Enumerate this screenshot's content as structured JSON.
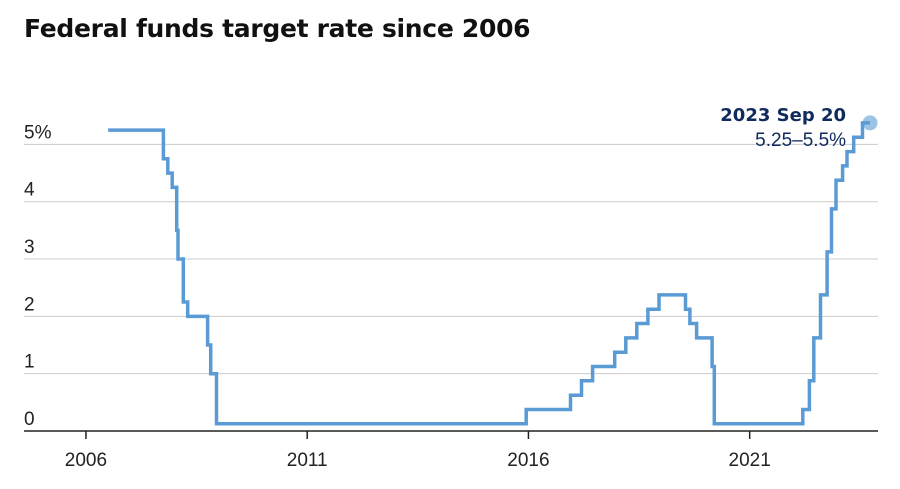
{
  "chart_data": {
    "type": "line",
    "title": "Federal funds target rate since 2006",
    "xlabel": "",
    "ylabel": "",
    "xlim": [
      2004.6,
      2023.9
    ],
    "ylim": [
      0,
      5.6
    ],
    "x_ticks": [
      {
        "value": 2006,
        "label": "2006"
      },
      {
        "value": 2011,
        "label": "2011"
      },
      {
        "value": 2016,
        "label": "2016"
      },
      {
        "value": 2021,
        "label": "2021"
      }
    ],
    "y_ticks": [
      {
        "value": 0,
        "label": "0"
      },
      {
        "value": 1,
        "label": "1"
      },
      {
        "value": 2,
        "label": "2"
      },
      {
        "value": 3,
        "label": "3"
      },
      {
        "value": 4,
        "label": "4"
      },
      {
        "value": 5,
        "label": "5%"
      }
    ],
    "grid": true,
    "line_color": "#5b9bd5",
    "series": [
      {
        "step": true,
        "points": [
          [
            2006.5,
            5.25
          ],
          [
            2007.7,
            5.25
          ],
          [
            2007.75,
            4.75
          ],
          [
            2007.85,
            4.5
          ],
          [
            2007.95,
            4.25
          ],
          [
            2008.05,
            3.5
          ],
          [
            2008.08,
            3.0
          ],
          [
            2008.2,
            2.25
          ],
          [
            2008.3,
            2.0
          ],
          [
            2008.75,
            1.5
          ],
          [
            2008.82,
            1.0
          ],
          [
            2008.95,
            0.125
          ],
          [
            2015.95,
            0.375
          ],
          [
            2016.95,
            0.625
          ],
          [
            2017.2,
            0.875
          ],
          [
            2017.45,
            1.125
          ],
          [
            2017.95,
            1.375
          ],
          [
            2018.2,
            1.625
          ],
          [
            2018.45,
            1.875
          ],
          [
            2018.7,
            2.125
          ],
          [
            2018.95,
            2.375
          ],
          [
            2019.55,
            2.125
          ],
          [
            2019.65,
            1.875
          ],
          [
            2019.8,
            1.625
          ],
          [
            2020.15,
            1.125
          ],
          [
            2020.2,
            0.125
          ],
          [
            2022.2,
            0.375
          ],
          [
            2022.35,
            0.875
          ],
          [
            2022.45,
            1.625
          ],
          [
            2022.6,
            2.375
          ],
          [
            2022.75,
            3.125
          ],
          [
            2022.85,
            3.875
          ],
          [
            2022.95,
            4.375
          ],
          [
            2023.1,
            4.625
          ],
          [
            2023.2,
            4.875
          ],
          [
            2023.35,
            5.125
          ],
          [
            2023.55,
            5.375
          ],
          [
            2023.72,
            5.375
          ]
        ]
      }
    ],
    "annotation": {
      "x": 2023.72,
      "y": 5.375,
      "date": "2023 Sep 20",
      "range": "5.25–5.5%"
    }
  }
}
